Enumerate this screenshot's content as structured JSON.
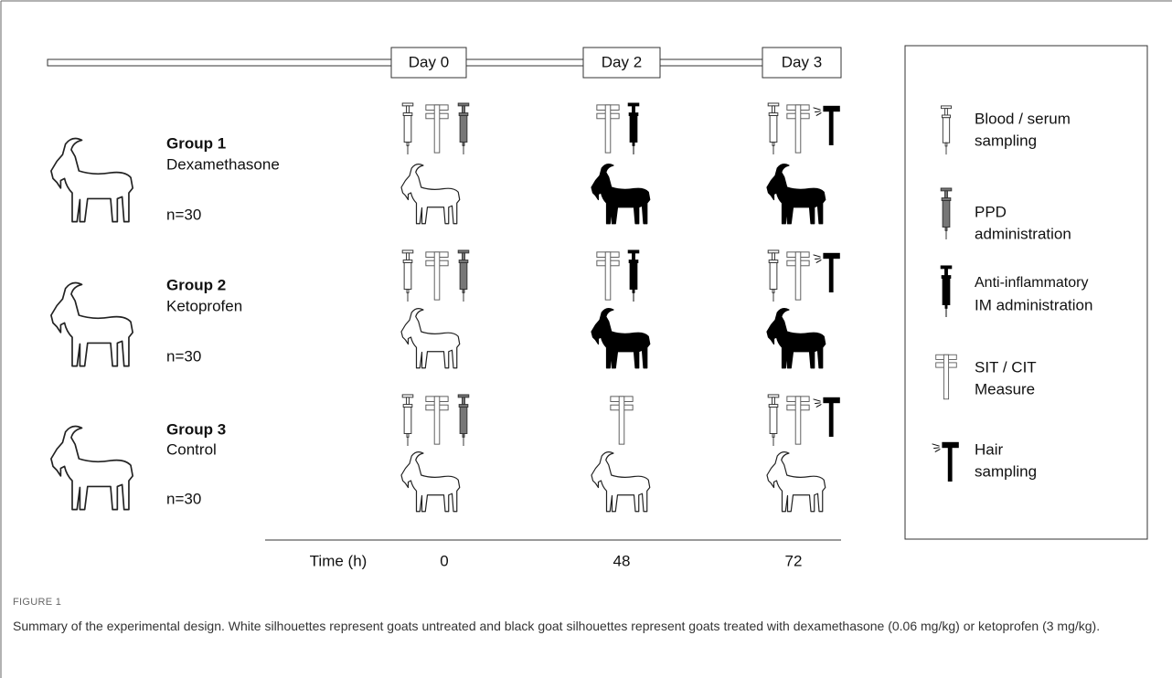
{
  "timeline": {
    "days": [
      "Day 0",
      "Day 2",
      "Day 3"
    ],
    "time_label": "Time (h)",
    "times": [
      0,
      48,
      72
    ]
  },
  "groups": [
    {
      "title": "Group 1",
      "treatment": "Dexamethasone",
      "n": "n=30"
    },
    {
      "title": "Group 2",
      "treatment": "Ketoprofen",
      "n": "n=30"
    },
    {
      "title": "Group 3",
      "treatment": "Control",
      "n": "n=30"
    }
  ],
  "legend": [
    {
      "lines": [
        "Blood / serum",
        "sampling"
      ]
    },
    {
      "lines": [
        "PPD",
        "administration"
      ]
    },
    {
      "lines": [
        "Anti-inflammatory",
        "IM administration"
      ]
    },
    {
      "lines": [
        "SIT / CIT",
        "Measure"
      ]
    },
    {
      "lines": [
        "Hair",
        "sampling"
      ]
    }
  ],
  "caption": {
    "label": "FIGURE 1",
    "text": "Summary of the experimental design. White silhouettes represent goats untreated and black goat silhouettes represent goats treated with dexamethasone (0.06 mg/kg) or ketoprofen (3 mg/kg)."
  }
}
